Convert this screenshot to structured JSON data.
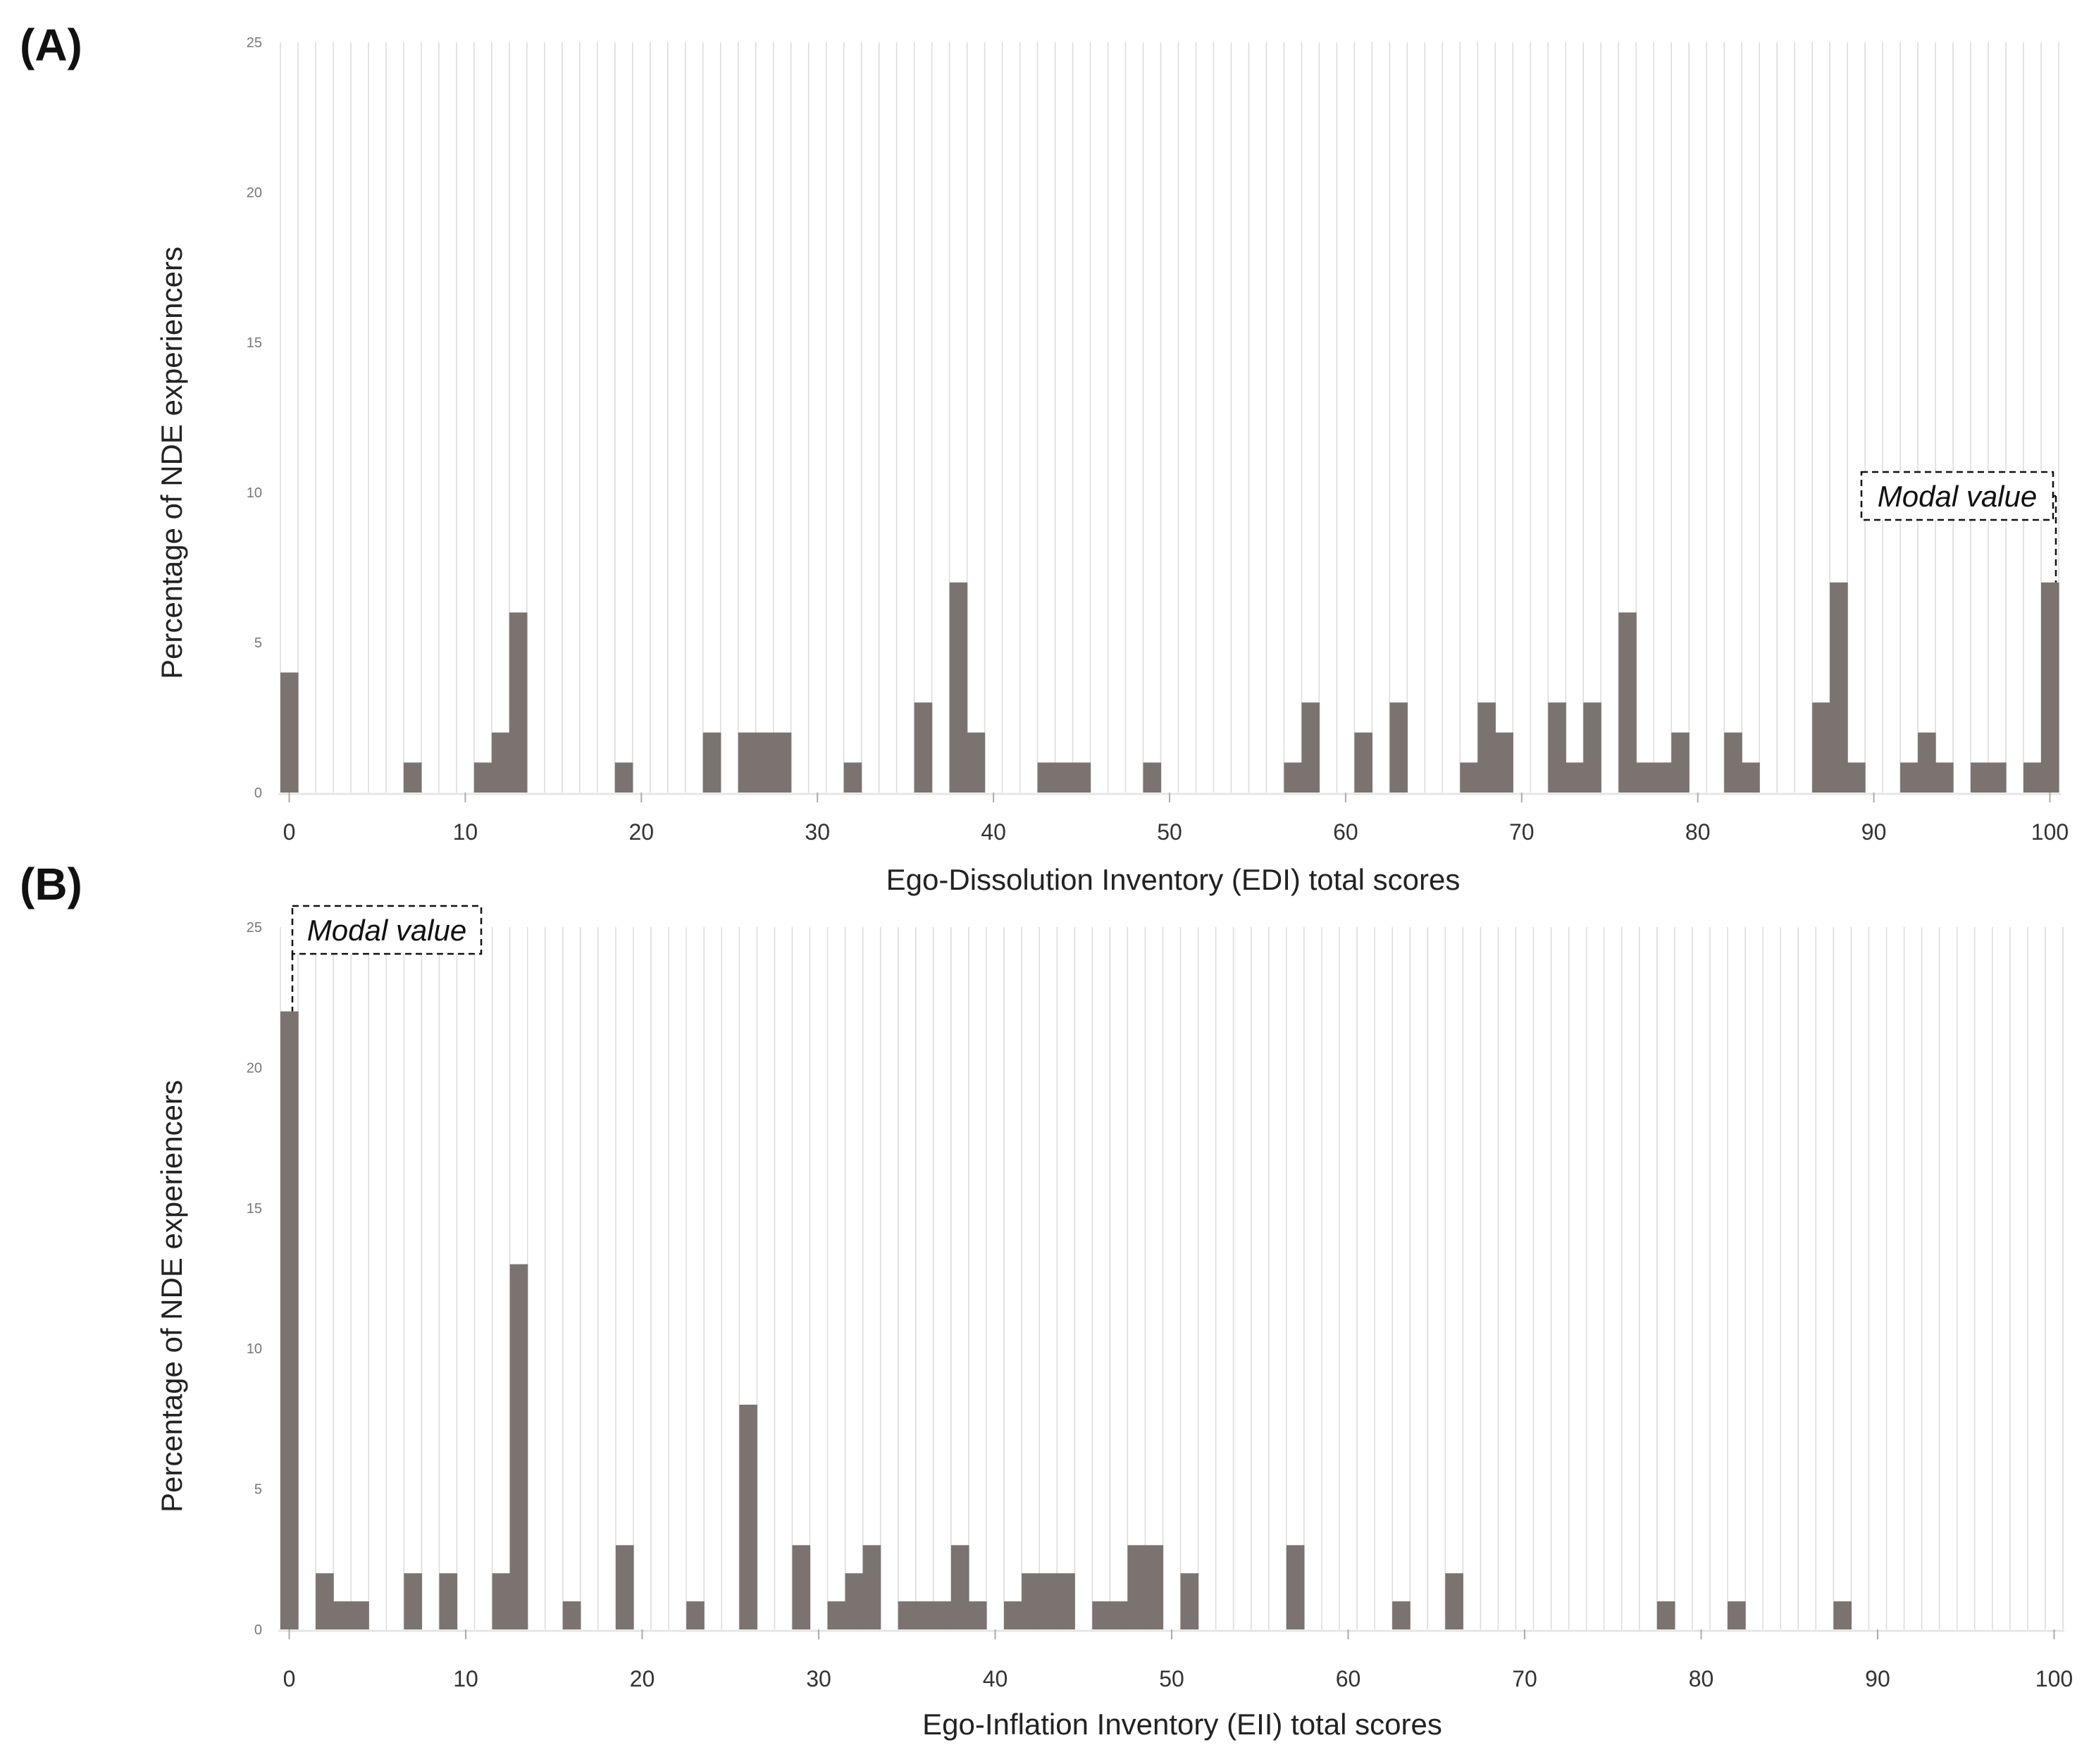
{
  "chart_data": [
    {
      "type": "bar",
      "panel_label": "(A)",
      "title": "",
      "xlabel": "Ego-Dissolution Inventory (EDI) total scores",
      "ylabel": "Percentage of NDE experiencers",
      "xlim": [
        0,
        100
      ],
      "ylim": [
        0,
        25
      ],
      "xticks": [
        "0",
        "10",
        "20",
        "30",
        "40",
        "50",
        "60",
        "70",
        "80",
        "90",
        "100"
      ],
      "yticks": [
        "0",
        "5",
        "10",
        "15",
        "20",
        "25"
      ],
      "grid": true,
      "annotation": {
        "text": "Modal value",
        "x": 100
      },
      "bar_color": "#7a7370",
      "x": [
        0,
        7,
        11,
        12,
        13,
        19,
        24,
        26,
        27,
        28,
        32,
        36,
        38,
        39,
        43,
        44,
        45,
        49,
        57,
        58,
        61,
        63,
        67,
        68,
        69,
        72,
        73,
        74,
        76,
        77,
        78,
        79,
        82,
        83,
        87,
        88,
        89,
        92,
        93,
        94,
        96,
        97,
        99,
        100
      ],
      "values": [
        4,
        1,
        1,
        2,
        6,
        1,
        2,
        2,
        2,
        2,
        1,
        3,
        7,
        2,
        1,
        1,
        1,
        1,
        1,
        3,
        2,
        3,
        1,
        3,
        2,
        3,
        1,
        3,
        6,
        1,
        1,
        2,
        2,
        1,
        3,
        7,
        1,
        1,
        2,
        1,
        1,
        1,
        1,
        7
      ]
    },
    {
      "type": "bar",
      "panel_label": "(B)",
      "title": "",
      "xlabel": "Ego-Inflation Inventory (EII) total scores",
      "ylabel": "Percentage of NDE experiencers",
      "xlim": [
        0,
        100
      ],
      "ylim": [
        0,
        25
      ],
      "xticks": [
        "0",
        "10",
        "20",
        "30",
        "40",
        "50",
        "60",
        "70",
        "80",
        "90",
        "100"
      ],
      "yticks": [
        "0",
        "5",
        "10",
        "15",
        "20",
        "25"
      ],
      "grid": true,
      "annotation": {
        "text": "Modal value",
        "x": 0
      },
      "bar_color": "#7a7370",
      "x": [
        0,
        2,
        3,
        4,
        7,
        9,
        12,
        13,
        16,
        19,
        23,
        26,
        29,
        31,
        32,
        33,
        35,
        36,
        37,
        38,
        39,
        41,
        42,
        43,
        44,
        46,
        47,
        48,
        49,
        51,
        57,
        63,
        66,
        78,
        82,
        88
      ],
      "values": [
        22,
        2,
        1,
        1,
        2,
        2,
        2,
        13,
        1,
        3,
        1,
        8,
        3,
        1,
        2,
        3,
        1,
        1,
        1,
        3,
        1,
        1,
        2,
        2,
        2,
        1,
        1,
        3,
        3,
        2,
        3,
        1,
        2,
        1,
        1,
        1
      ]
    }
  ]
}
